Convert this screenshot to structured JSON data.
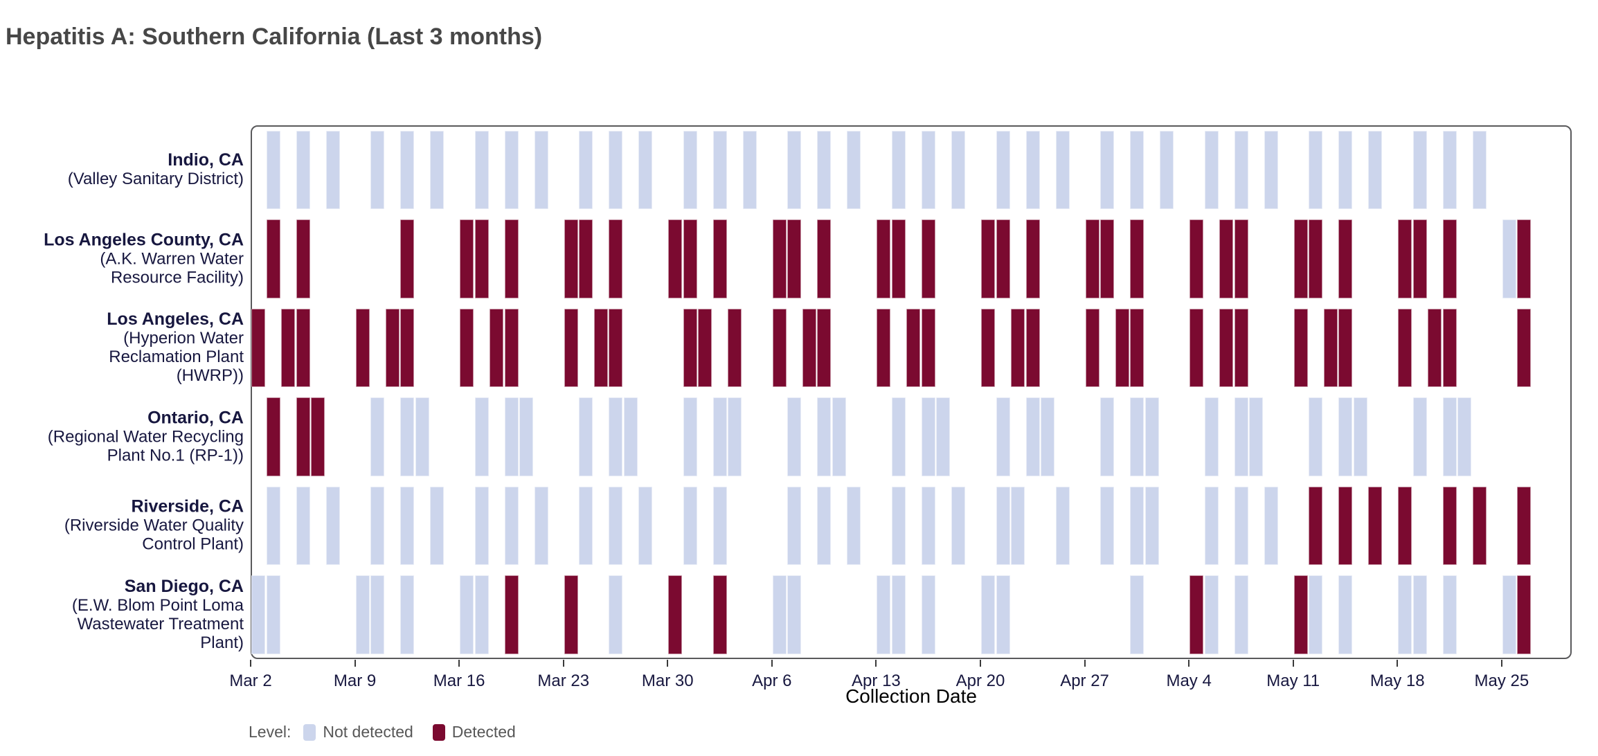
{
  "title": "Hepatitis A: Southern California (Last 3 months)",
  "axis": {
    "x_label": "Collection Date",
    "ticks": [
      {
        "label": "Mar 2",
        "day": 0
      },
      {
        "label": "Mar 9",
        "day": 7
      },
      {
        "label": "Mar 16",
        "day": 14
      },
      {
        "label": "Mar 23",
        "day": 21
      },
      {
        "label": "Mar 30",
        "day": 28
      },
      {
        "label": "Apr 6",
        "day": 35
      },
      {
        "label": "Apr 13",
        "day": 42
      },
      {
        "label": "Apr 20",
        "day": 49
      },
      {
        "label": "Apr 27",
        "day": 56
      },
      {
        "label": "May 4",
        "day": 63
      },
      {
        "label": "May 11",
        "day": 70
      },
      {
        "label": "May 18",
        "day": 77
      },
      {
        "label": "May 25",
        "day": 84
      }
    ]
  },
  "legend": {
    "label": "Level:",
    "items": [
      {
        "label": "Not detected",
        "status": "nd",
        "color": "#ccd5ec"
      },
      {
        "label": "Detected",
        "status": "det",
        "color": "#7b0a30"
      }
    ]
  },
  "colors": {
    "detected": "#7b0a30",
    "not_detected": "#ccd5ec",
    "panel_border": "#59595b",
    "label_text": "#17173f",
    "title_text": "#474747",
    "legend_text": "#575757"
  },
  "chart_data": {
    "type": "heatmap",
    "subtype": "detection-status-timeline",
    "x_axis": "Collection Date (Mar 2 - May 26), day offsets counted from Mar 2",
    "status_legend": {
      "nd": "Not detected",
      "det": "Detected"
    },
    "samples_format": [
      "date",
      "day_offset",
      "status"
    ],
    "series": [
      {
        "name": "Indio, CA",
        "facility_lines": [
          "(Valley Sanitary District)"
        ],
        "samples": [
          [
            "Mar 3",
            1,
            "nd"
          ],
          [
            "Mar 5",
            3,
            "nd"
          ],
          [
            "Mar 7",
            5,
            "nd"
          ],
          [
            "Mar 10",
            8,
            "nd"
          ],
          [
            "Mar 12",
            10,
            "nd"
          ],
          [
            "Mar 14",
            12,
            "nd"
          ],
          [
            "Mar 17",
            15,
            "nd"
          ],
          [
            "Mar 19",
            17,
            "nd"
          ],
          [
            "Mar 21",
            19,
            "nd"
          ],
          [
            "Mar 24",
            22,
            "nd"
          ],
          [
            "Mar 26",
            24,
            "nd"
          ],
          [
            "Mar 28",
            26,
            "nd"
          ],
          [
            "Mar 31",
            29,
            "nd"
          ],
          [
            "Apr 2",
            31,
            "nd"
          ],
          [
            "Apr 4",
            33,
            "nd"
          ],
          [
            "Apr 7",
            36,
            "nd"
          ],
          [
            "Apr 9",
            38,
            "nd"
          ],
          [
            "Apr 11",
            40,
            "nd"
          ],
          [
            "Apr 14",
            43,
            "nd"
          ],
          [
            "Apr 16",
            45,
            "nd"
          ],
          [
            "Apr 18",
            47,
            "nd"
          ],
          [
            "Apr 21",
            50,
            "nd"
          ],
          [
            "Apr 23",
            52,
            "nd"
          ],
          [
            "Apr 25",
            54,
            "nd"
          ],
          [
            "Apr 28",
            57,
            "nd"
          ],
          [
            "Apr 30",
            59,
            "nd"
          ],
          [
            "May 2",
            61,
            "nd"
          ],
          [
            "May 5",
            64,
            "nd"
          ],
          [
            "May 7",
            66,
            "nd"
          ],
          [
            "May 9",
            68,
            "nd"
          ],
          [
            "May 12",
            71,
            "nd"
          ],
          [
            "May 14",
            73,
            "nd"
          ],
          [
            "May 16",
            75,
            "nd"
          ],
          [
            "May 19",
            78,
            "nd"
          ],
          [
            "May 21",
            80,
            "nd"
          ],
          [
            "May 23",
            82,
            "nd"
          ]
        ]
      },
      {
        "name": "Los Angeles County, CA",
        "facility_lines": [
          "(A.K. Warren Water",
          "Resource Facility)"
        ],
        "samples": [
          [
            "Mar 3",
            1,
            "det"
          ],
          [
            "Mar 5",
            3,
            "det"
          ],
          [
            "Mar 12",
            10,
            "det"
          ],
          [
            "Mar 16",
            14,
            "det"
          ],
          [
            "Mar 17",
            15,
            "det"
          ],
          [
            "Mar 19",
            17,
            "det"
          ],
          [
            "Mar 23",
            21,
            "det"
          ],
          [
            "Mar 24",
            22,
            "det"
          ],
          [
            "Mar 26",
            24,
            "det"
          ],
          [
            "Mar 30",
            28,
            "det"
          ],
          [
            "Mar 31",
            29,
            "det"
          ],
          [
            "Apr 2",
            31,
            "det"
          ],
          [
            "Apr 6",
            35,
            "det"
          ],
          [
            "Apr 7",
            36,
            "det"
          ],
          [
            "Apr 9",
            38,
            "det"
          ],
          [
            "Apr 13",
            42,
            "det"
          ],
          [
            "Apr 14",
            43,
            "det"
          ],
          [
            "Apr 16",
            45,
            "det"
          ],
          [
            "Apr 20",
            49,
            "det"
          ],
          [
            "Apr 21",
            50,
            "det"
          ],
          [
            "Apr 23",
            52,
            "det"
          ],
          [
            "Apr 27",
            56,
            "det"
          ],
          [
            "Apr 28",
            57,
            "det"
          ],
          [
            "Apr 30",
            59,
            "det"
          ],
          [
            "May 4",
            63,
            "det"
          ],
          [
            "May 6",
            65,
            "det"
          ],
          [
            "May 7",
            66,
            "det"
          ],
          [
            "May 11",
            70,
            "det"
          ],
          [
            "May 12",
            71,
            "det"
          ],
          [
            "May 14",
            73,
            "det"
          ],
          [
            "May 18",
            77,
            "det"
          ],
          [
            "May 19",
            78,
            "det"
          ],
          [
            "May 21",
            80,
            "det"
          ],
          [
            "May 25",
            84,
            "nd"
          ],
          [
            "May 26",
            85,
            "det"
          ]
        ]
      },
      {
        "name": "Los Angeles, CA",
        "facility_lines": [
          "(Hyperion Water",
          "Reclamation Plant",
          "(HWRP))"
        ],
        "samples": [
          [
            "Mar 2",
            0,
            "det"
          ],
          [
            "Mar 4",
            2,
            "det"
          ],
          [
            "Mar 5",
            3,
            "det"
          ],
          [
            "Mar 9",
            7,
            "det"
          ],
          [
            "Mar 11",
            9,
            "det"
          ],
          [
            "Mar 12",
            10,
            "det"
          ],
          [
            "Mar 16",
            14,
            "det"
          ],
          [
            "Mar 18",
            16,
            "det"
          ],
          [
            "Mar 19",
            17,
            "det"
          ],
          [
            "Mar 23",
            21,
            "det"
          ],
          [
            "Mar 25",
            23,
            "det"
          ],
          [
            "Mar 26",
            24,
            "det"
          ],
          [
            "Mar 31",
            29,
            "det"
          ],
          [
            "Apr 1",
            30,
            "det"
          ],
          [
            "Apr 3",
            32,
            "det"
          ],
          [
            "Apr 6",
            35,
            "det"
          ],
          [
            "Apr 8",
            37,
            "det"
          ],
          [
            "Apr 9",
            38,
            "det"
          ],
          [
            "Apr 13",
            42,
            "det"
          ],
          [
            "Apr 15",
            44,
            "det"
          ],
          [
            "Apr 16",
            45,
            "det"
          ],
          [
            "Apr 20",
            49,
            "det"
          ],
          [
            "Apr 22",
            51,
            "det"
          ],
          [
            "Apr 23",
            52,
            "det"
          ],
          [
            "Apr 27",
            56,
            "det"
          ],
          [
            "Apr 29",
            58,
            "det"
          ],
          [
            "Apr 30",
            59,
            "det"
          ],
          [
            "May 4",
            63,
            "det"
          ],
          [
            "May 6",
            65,
            "det"
          ],
          [
            "May 7",
            66,
            "det"
          ],
          [
            "May 11",
            70,
            "det"
          ],
          [
            "May 13",
            72,
            "det"
          ],
          [
            "May 14",
            73,
            "det"
          ],
          [
            "May 18",
            77,
            "det"
          ],
          [
            "May 20",
            79,
            "det"
          ],
          [
            "May 21",
            80,
            "det"
          ],
          [
            "May 26",
            85,
            "det"
          ]
        ]
      },
      {
        "name": "Ontario, CA",
        "facility_lines": [
          "(Regional Water Recycling",
          "Plant No.1 (RP-1))"
        ],
        "samples": [
          [
            "Mar 3",
            1,
            "det"
          ],
          [
            "Mar 5",
            3,
            "det"
          ],
          [
            "Mar 6",
            4,
            "det"
          ],
          [
            "Mar 10",
            8,
            "nd"
          ],
          [
            "Mar 12",
            10,
            "nd"
          ],
          [
            "Mar 13",
            11,
            "nd"
          ],
          [
            "Mar 17",
            15,
            "nd"
          ],
          [
            "Mar 19",
            17,
            "nd"
          ],
          [
            "Mar 20",
            18,
            "nd"
          ],
          [
            "Mar 24",
            22,
            "nd"
          ],
          [
            "Mar 26",
            24,
            "nd"
          ],
          [
            "Mar 27",
            25,
            "nd"
          ],
          [
            "Mar 31",
            29,
            "nd"
          ],
          [
            "Apr 2",
            31,
            "nd"
          ],
          [
            "Apr 3",
            32,
            "nd"
          ],
          [
            "Apr 7",
            36,
            "nd"
          ],
          [
            "Apr 9",
            38,
            "nd"
          ],
          [
            "Apr 10",
            39,
            "nd"
          ],
          [
            "Apr 14",
            43,
            "nd"
          ],
          [
            "Apr 16",
            45,
            "nd"
          ],
          [
            "Apr 17",
            46,
            "nd"
          ],
          [
            "Apr 21",
            50,
            "nd"
          ],
          [
            "Apr 23",
            52,
            "nd"
          ],
          [
            "Apr 24",
            53,
            "nd"
          ],
          [
            "Apr 28",
            57,
            "nd"
          ],
          [
            "Apr 30",
            59,
            "nd"
          ],
          [
            "May 1",
            60,
            "nd"
          ],
          [
            "May 5",
            64,
            "nd"
          ],
          [
            "May 7",
            66,
            "nd"
          ],
          [
            "May 8",
            67,
            "nd"
          ],
          [
            "May 12",
            71,
            "nd"
          ],
          [
            "May 14",
            73,
            "nd"
          ],
          [
            "May 15",
            74,
            "nd"
          ],
          [
            "May 19",
            78,
            "nd"
          ],
          [
            "May 21",
            80,
            "nd"
          ],
          [
            "May 22",
            81,
            "nd"
          ]
        ]
      },
      {
        "name": "Riverside, CA",
        "facility_lines": [
          "(Riverside Water Quality",
          "Control Plant)"
        ],
        "samples": [
          [
            "Mar 3",
            1,
            "nd"
          ],
          [
            "Mar 5",
            3,
            "nd"
          ],
          [
            "Mar 7",
            5,
            "nd"
          ],
          [
            "Mar 10",
            8,
            "nd"
          ],
          [
            "Mar 12",
            10,
            "nd"
          ],
          [
            "Mar 14",
            12,
            "nd"
          ],
          [
            "Mar 17",
            15,
            "nd"
          ],
          [
            "Mar 19",
            17,
            "nd"
          ],
          [
            "Mar 21",
            19,
            "nd"
          ],
          [
            "Mar 24",
            22,
            "nd"
          ],
          [
            "Mar 26",
            24,
            "nd"
          ],
          [
            "Mar 28",
            26,
            "nd"
          ],
          [
            "Mar 31",
            29,
            "nd"
          ],
          [
            "Apr 2",
            31,
            "nd"
          ],
          [
            "Apr 7",
            36,
            "nd"
          ],
          [
            "Apr 9",
            38,
            "nd"
          ],
          [
            "Apr 11",
            40,
            "nd"
          ],
          [
            "Apr 14",
            43,
            "nd"
          ],
          [
            "Apr 16",
            45,
            "nd"
          ],
          [
            "Apr 18",
            47,
            "nd"
          ],
          [
            "Apr 21",
            50,
            "nd"
          ],
          [
            "Apr 22",
            51,
            "nd"
          ],
          [
            "Apr 25",
            54,
            "nd"
          ],
          [
            "Apr 28",
            57,
            "nd"
          ],
          [
            "Apr 30",
            59,
            "nd"
          ],
          [
            "May 1",
            60,
            "nd"
          ],
          [
            "May 5",
            64,
            "nd"
          ],
          [
            "May 7",
            66,
            "nd"
          ],
          [
            "May 9",
            68,
            "nd"
          ],
          [
            "May 12",
            71,
            "det"
          ],
          [
            "May 14",
            73,
            "det"
          ],
          [
            "May 16",
            75,
            "det"
          ],
          [
            "May 18",
            77,
            "det"
          ],
          [
            "May 21",
            80,
            "det"
          ],
          [
            "May 23",
            82,
            "det"
          ],
          [
            "May 26",
            85,
            "det"
          ]
        ]
      },
      {
        "name": "San Diego, CA",
        "facility_lines": [
          "(E.W. Blom Point Loma",
          "Wastewater Treatment",
          "Plant)"
        ],
        "samples": [
          [
            "Mar 2",
            0,
            "nd"
          ],
          [
            "Mar 3",
            1,
            "nd"
          ],
          [
            "Mar 9",
            7,
            "nd"
          ],
          [
            "Mar 10",
            8,
            "nd"
          ],
          [
            "Mar 12",
            10,
            "nd"
          ],
          [
            "Mar 16",
            14,
            "nd"
          ],
          [
            "Mar 17",
            15,
            "nd"
          ],
          [
            "Mar 19",
            17,
            "det"
          ],
          [
            "Mar 23",
            21,
            "det"
          ],
          [
            "Mar 26",
            24,
            "nd"
          ],
          [
            "Mar 30",
            28,
            "det"
          ],
          [
            "Apr 2",
            31,
            "det"
          ],
          [
            "Apr 6",
            35,
            "nd"
          ],
          [
            "Apr 7",
            36,
            "nd"
          ],
          [
            "Apr 13",
            42,
            "nd"
          ],
          [
            "Apr 14",
            43,
            "nd"
          ],
          [
            "Apr 16",
            45,
            "nd"
          ],
          [
            "Apr 20",
            49,
            "nd"
          ],
          [
            "Apr 21",
            50,
            "nd"
          ],
          [
            "Apr 30",
            59,
            "nd"
          ],
          [
            "May 4",
            63,
            "det"
          ],
          [
            "May 5",
            64,
            "nd"
          ],
          [
            "May 7",
            66,
            "nd"
          ],
          [
            "May 11",
            70,
            "det"
          ],
          [
            "May 12",
            71,
            "nd"
          ],
          [
            "May 14",
            73,
            "nd"
          ],
          [
            "May 18",
            77,
            "nd"
          ],
          [
            "May 19",
            78,
            "nd"
          ],
          [
            "May 21",
            80,
            "nd"
          ],
          [
            "May 25",
            84,
            "nd"
          ],
          [
            "May 26",
            85,
            "det"
          ]
        ]
      }
    ],
    "layout": {
      "x_range_days": [
        0,
        88
      ],
      "grid": false,
      "legend_position": "bottom-left"
    }
  }
}
